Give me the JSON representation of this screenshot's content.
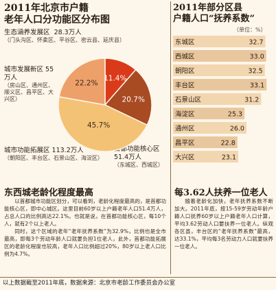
{
  "left_title_lines": [
    "2011年北京市户籍",
    "老年人口分功能区分布图"
  ],
  "right_title_lines": [
    "2011年部分区县",
    "户籍人口“抚养系数”"
  ],
  "unit_label": "（单位：%）",
  "pie_labels": {
    "eco": {
      "name": "生态涵养发展区",
      "value": "28.3万人",
      "districts": "（门头沟区、怀柔区、平谷区、密云县、延庆县）"
    },
    "urban_new": {
      "name": "城市发展新区",
      "value": "55万人",
      "districts": "（房山区、通州区、顺义区、昌平区、大兴区）"
    },
    "expand": {
      "name": "城市功能拓展区",
      "value": "113.2万人",
      "districts": "（朝阳区、丰台区、石景山区、海淀区）"
    },
    "core": {
      "name": "首都功能核心区",
      "value": "51.4万人",
      "districts": "（东城区、西城区）"
    }
  },
  "article_left": {
    "headline": "东西城老龄化程度最高",
    "paragraphs": [
      "以首都城市功能区划分，可以看到，老龄化程度最高的，是首都功能核心区，即中心城区。这里目前60岁以上户籍老年人口51.4万人，占总人口的比例高达22.1%。也就是说，在首都功能核心区，每10个人，就有2个以上老人。",
      "同时，这个区域的老年“老年抚养系数”为32.9%，比例也是全市最高，即每3个劳动年龄人口就要负担1位老人，此外，首都功能拓展区的老龄化程度也较高，老年人口比例超过20%，80岁以上老人口比例为4.7%。"
    ]
  },
  "article_right": {
    "headline": "每3.62人扶养一位老人",
    "paragraphs": [
      "随着老龄化加快，老年抚养系数不断加大。2011年底，按15-59岁劳动年龄户籍人口抚养60岁以上户籍老年人口计算，平均3.62劳动人口要扶养一位老人。纵观各区县，丰台区的“老年抚养系数”最高，达33.1%，平均每3名劳动力人口就要扶养一位老人。"
    ]
  },
  "footer": "以上数据截至2011年底，数据来源：北京市老龄工作委员会办公室",
  "chart_data": [
    {
      "type": "pie",
      "title": "2011年北京市户籍老年人口分功能区分布图",
      "slices": [
        {
          "name": "生态涵养发展区",
          "value": 11.4,
          "count": "28.3万人",
          "color": "#d93a1a"
        },
        {
          "name": "首都功能核心区",
          "value": 20.7,
          "count": "51.4万人",
          "color": "#a84a22"
        },
        {
          "name": "城市功能拓展区",
          "value": 45.7,
          "count": "113.2万人",
          "color": "#f4c275"
        },
        {
          "name": "城市发展新区",
          "value": 22.2,
          "count": "55万人",
          "color": "#eea06a"
        }
      ],
      "value_labels": [
        "11.4%",
        "20.7%",
        "45.7%",
        "22.2%"
      ]
    },
    {
      "type": "bar",
      "orientation": "horizontal",
      "title": "2011年部分区县户籍人口“抚养系数”",
      "unit": "%",
      "categories": [
        "东城区",
        "西城区",
        "朝阳区",
        "丰台区",
        "石景山区",
        "海淀区",
        "通州区",
        "昌平区",
        "大兴区"
      ],
      "values": [
        32.7,
        33.0,
        32.5,
        33.1,
        31.2,
        25.3,
        26.0,
        22.8,
        23.1
      ],
      "value_labels": [
        "32.7",
        "33.0",
        "32.5",
        "33.1",
        "31.2",
        "25.3",
        "26.0",
        "22.8",
        "23.1"
      ],
      "xlim": [
        0,
        35
      ],
      "bar_colors": [
        "#f2d6b0",
        "#e9c79e"
      ],
      "label_colors": [
        "#ffffff",
        "#2a1d12"
      ]
    }
  ]
}
